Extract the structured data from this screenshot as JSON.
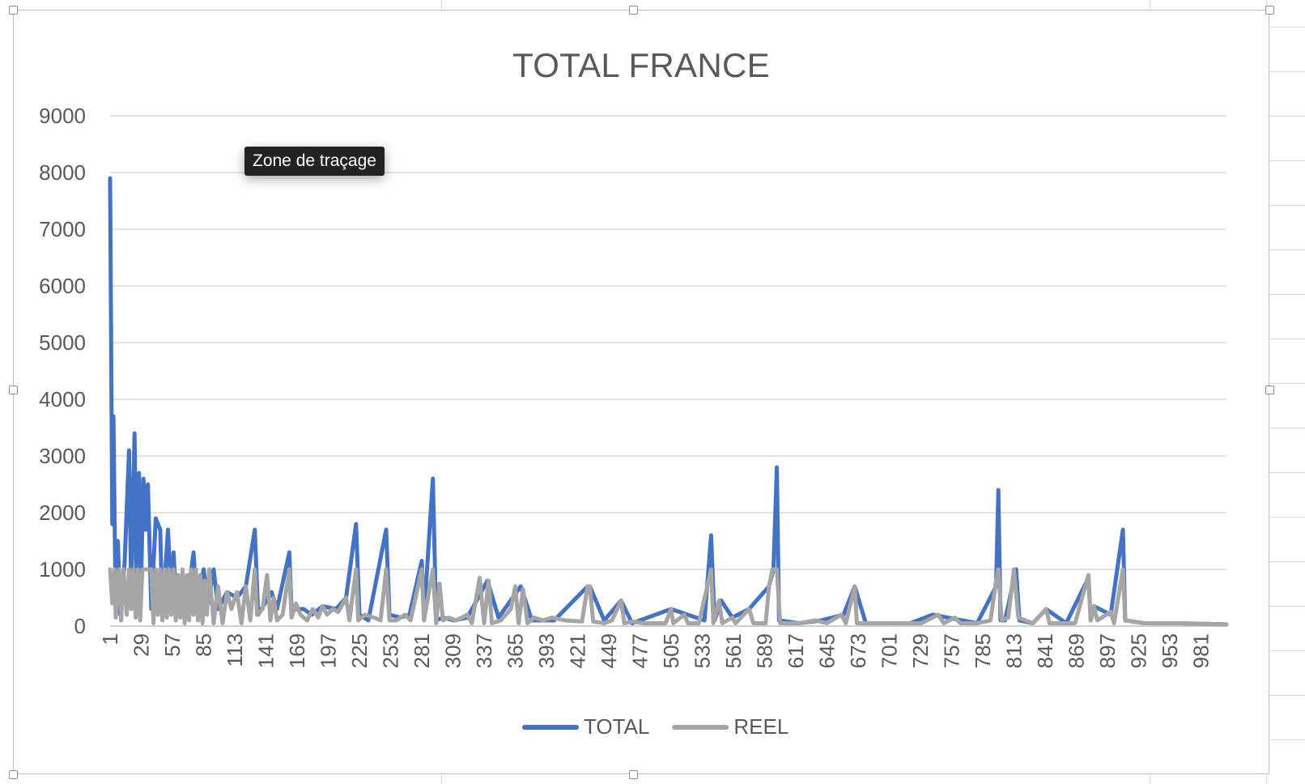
{
  "chart_data": {
    "type": "line",
    "title": "TOTAL FRANCE",
    "xlabel": "",
    "ylabel": "",
    "ylim": [
      0,
      9000
    ],
    "y_ticks": [
      "0",
      "1000",
      "2000",
      "3000",
      "4000",
      "5000",
      "6000",
      "7000",
      "8000",
      "9000"
    ],
    "x_range": [
      1,
      1004
    ],
    "x_tick_labels": [
      "1",
      "29",
      "57",
      "85",
      "113",
      "141",
      "169",
      "197",
      "225",
      "253",
      "281",
      "309",
      "337",
      "365",
      "393",
      "421",
      "449",
      "477",
      "505",
      "533",
      "561",
      "589",
      "617",
      "645",
      "673",
      "701",
      "729",
      "757",
      "785",
      "813",
      "841",
      "869",
      "897",
      "925",
      "953",
      "981"
    ],
    "grid": "horizontal",
    "legend": "bottom",
    "series": [
      {
        "name": "TOTAL",
        "color": "#4472c4",
        "points": [
          [
            1,
            7900
          ],
          [
            3,
            1800
          ],
          [
            4,
            3700
          ],
          [
            6,
            300
          ],
          [
            8,
            1500
          ],
          [
            10,
            200
          ],
          [
            14,
            1100
          ],
          [
            18,
            3100
          ],
          [
            20,
            600
          ],
          [
            23,
            3400
          ],
          [
            25,
            400
          ],
          [
            27,
            2700
          ],
          [
            29,
            900
          ],
          [
            31,
            2600
          ],
          [
            33,
            1700
          ],
          [
            35,
            2500
          ],
          [
            38,
            300
          ],
          [
            42,
            1900
          ],
          [
            46,
            1700
          ],
          [
            48,
            200
          ],
          [
            53,
            1700
          ],
          [
            56,
            500
          ],
          [
            58,
            1300
          ],
          [
            61,
            200
          ],
          [
            66,
            900
          ],
          [
            70,
            400
          ],
          [
            76,
            1300
          ],
          [
            79,
            300
          ],
          [
            85,
            1000
          ],
          [
            89,
            400
          ],
          [
            94,
            1000
          ],
          [
            98,
            300
          ],
          [
            106,
            600
          ],
          [
            115,
            500
          ],
          [
            123,
            700
          ],
          [
            131,
            1700
          ],
          [
            134,
            200
          ],
          [
            140,
            400
          ],
          [
            146,
            600
          ],
          [
            151,
            300
          ],
          [
            162,
            1300
          ],
          [
            164,
            300
          ],
          [
            175,
            300
          ],
          [
            182,
            200
          ],
          [
            192,
            350
          ],
          [
            204,
            300
          ],
          [
            213,
            500
          ],
          [
            222,
            1800
          ],
          [
            225,
            200
          ],
          [
            233,
            100
          ],
          [
            249,
            1700
          ],
          [
            252,
            200
          ],
          [
            262,
            150
          ],
          [
            270,
            200
          ],
          [
            281,
            1150
          ],
          [
            283,
            150
          ],
          [
            291,
            2600
          ],
          [
            294,
            100
          ],
          [
            300,
            150
          ],
          [
            310,
            100
          ],
          [
            322,
            150
          ],
          [
            340,
            800
          ],
          [
            350,
            150
          ],
          [
            370,
            700
          ],
          [
            380,
            100
          ],
          [
            400,
            100
          ],
          [
            430,
            700
          ],
          [
            432,
            700
          ],
          [
            445,
            100
          ],
          [
            460,
            450
          ],
          [
            470,
            50
          ],
          [
            505,
            300
          ],
          [
            520,
            200
          ],
          [
            535,
            100
          ],
          [
            541,
            1600
          ],
          [
            544,
            100
          ],
          [
            550,
            450
          ],
          [
            560,
            150
          ],
          [
            575,
            300
          ],
          [
            593,
            700
          ],
          [
            597,
            1000
          ],
          [
            600,
            2800
          ],
          [
            602,
            100
          ],
          [
            620,
            50
          ],
          [
            640,
            100
          ],
          [
            660,
            200
          ],
          [
            670,
            700
          ],
          [
            680,
            50
          ],
          [
            700,
            50
          ],
          [
            720,
            50
          ],
          [
            740,
            200
          ],
          [
            780,
            50
          ],
          [
            797,
            700
          ],
          [
            799,
            2400
          ],
          [
            801,
            100
          ],
          [
            805,
            100
          ],
          [
            815,
            1000
          ],
          [
            818,
            100
          ],
          [
            830,
            50
          ],
          [
            842,
            300
          ],
          [
            860,
            50
          ],
          [
            880,
            850
          ],
          [
            882,
            100
          ],
          [
            885,
            350
          ],
          [
            900,
            200
          ],
          [
            911,
            1700
          ],
          [
            913,
            100
          ],
          [
            930,
            50
          ],
          [
            960,
            50
          ],
          [
            1004,
            30
          ]
        ]
      },
      {
        "name": "REEL",
        "color": "#a5a5a5",
        "points": [
          [
            1,
            1000
          ],
          [
            3,
            400
          ],
          [
            5,
            1000
          ],
          [
            6,
            150
          ],
          [
            9,
            1000
          ],
          [
            11,
            100
          ],
          [
            13,
            1000
          ],
          [
            16,
            200
          ],
          [
            18,
            1000
          ],
          [
            20,
            300
          ],
          [
            22,
            1000
          ],
          [
            24,
            150
          ],
          [
            26,
            1000
          ],
          [
            28,
            100
          ],
          [
            30,
            1000
          ],
          [
            38,
            1000
          ],
          [
            40,
            50
          ],
          [
            42,
            1000
          ],
          [
            44,
            200
          ],
          [
            46,
            1000
          ],
          [
            48,
            100
          ],
          [
            50,
            1000
          ],
          [
            52,
            150
          ],
          [
            54,
            1000
          ],
          [
            56,
            200
          ],
          [
            58,
            1000
          ],
          [
            60,
            100
          ],
          [
            62,
            900
          ],
          [
            64,
            150
          ],
          [
            66,
            1000
          ],
          [
            68,
            50
          ],
          [
            70,
            900
          ],
          [
            72,
            100
          ],
          [
            74,
            1000
          ],
          [
            76,
            200
          ],
          [
            78,
            1000
          ],
          [
            80,
            100
          ],
          [
            82,
            900
          ],
          [
            84,
            50
          ],
          [
            86,
            800
          ],
          [
            88,
            200
          ],
          [
            90,
            1000
          ],
          [
            94,
            50
          ],
          [
            98,
            700
          ],
          [
            102,
            50
          ],
          [
            106,
            600
          ],
          [
            110,
            300
          ],
          [
            115,
            600
          ],
          [
            119,
            50
          ],
          [
            123,
            700
          ],
          [
            127,
            100
          ],
          [
            131,
            1000
          ],
          [
            133,
            200
          ],
          [
            138,
            300
          ],
          [
            142,
            900
          ],
          [
            145,
            100
          ],
          [
            148,
            500
          ],
          [
            151,
            100
          ],
          [
            156,
            200
          ],
          [
            162,
            1000
          ],
          [
            164,
            150
          ],
          [
            168,
            400
          ],
          [
            172,
            200
          ],
          [
            178,
            100
          ],
          [
            183,
            300
          ],
          [
            188,
            150
          ],
          [
            192,
            350
          ],
          [
            196,
            200
          ],
          [
            201,
            300
          ],
          [
            206,
            250
          ],
          [
            213,
            500
          ],
          [
            216,
            100
          ],
          [
            222,
            1000
          ],
          [
            224,
            100
          ],
          [
            230,
            200
          ],
          [
            238,
            150
          ],
          [
            244,
            100
          ],
          [
            249,
            1000
          ],
          [
            252,
            100
          ],
          [
            258,
            100
          ],
          [
            266,
            200
          ],
          [
            271,
            100
          ],
          [
            281,
            1000
          ],
          [
            283,
            100
          ],
          [
            291,
            1000
          ],
          [
            294,
            50
          ],
          [
            297,
            750
          ],
          [
            300,
            100
          ],
          [
            305,
            150
          ],
          [
            312,
            100
          ],
          [
            322,
            200
          ],
          [
            326,
            50
          ],
          [
            333,
            850
          ],
          [
            337,
            50
          ],
          [
            341,
            800
          ],
          [
            344,
            50
          ],
          [
            352,
            100
          ],
          [
            361,
            300
          ],
          [
            365,
            700
          ],
          [
            368,
            50
          ],
          [
            372,
            650
          ],
          [
            376,
            50
          ],
          [
            382,
            150
          ],
          [
            390,
            100
          ],
          [
            398,
            150
          ],
          [
            410,
            100
          ],
          [
            425,
            80
          ],
          [
            430,
            700
          ],
          [
            432,
            700
          ],
          [
            435,
            80
          ],
          [
            445,
            50
          ],
          [
            452,
            100
          ],
          [
            460,
            450
          ],
          [
            463,
            50
          ],
          [
            470,
            80
          ],
          [
            480,
            50
          ],
          [
            500,
            50
          ],
          [
            505,
            300
          ],
          [
            507,
            50
          ],
          [
            517,
            200
          ],
          [
            520,
            50
          ],
          [
            530,
            50
          ],
          [
            541,
            1000
          ],
          [
            543,
            50
          ],
          [
            548,
            450
          ],
          [
            551,
            50
          ],
          [
            560,
            150
          ],
          [
            563,
            50
          ],
          [
            575,
            300
          ],
          [
            579,
            50
          ],
          [
            590,
            50
          ],
          [
            593,
            700
          ],
          [
            596,
            1000
          ],
          [
            600,
            1000
          ],
          [
            603,
            50
          ],
          [
            620,
            50
          ],
          [
            635,
            100
          ],
          [
            645,
            50
          ],
          [
            658,
            200
          ],
          [
            662,
            50
          ],
          [
            670,
            700
          ],
          [
            672,
            50
          ],
          [
            690,
            50
          ],
          [
            710,
            50
          ],
          [
            730,
            50
          ],
          [
            745,
            200
          ],
          [
            750,
            50
          ],
          [
            760,
            150
          ],
          [
            765,
            50
          ],
          [
            780,
            50
          ],
          [
            792,
            100
          ],
          [
            797,
            800
          ],
          [
            799,
            1000
          ],
          [
            802,
            100
          ],
          [
            808,
            150
          ],
          [
            813,
            1000
          ],
          [
            817,
            150
          ],
          [
            830,
            50
          ],
          [
            842,
            300
          ],
          [
            845,
            50
          ],
          [
            860,
            50
          ],
          [
            868,
            50
          ],
          [
            880,
            900
          ],
          [
            882,
            100
          ],
          [
            885,
            350
          ],
          [
            888,
            100
          ],
          [
            900,
            250
          ],
          [
            903,
            50
          ],
          [
            911,
            1000
          ],
          [
            913,
            100
          ],
          [
            930,
            50
          ],
          [
            960,
            50
          ],
          [
            1004,
            30
          ]
        ]
      }
    ]
  }
}
